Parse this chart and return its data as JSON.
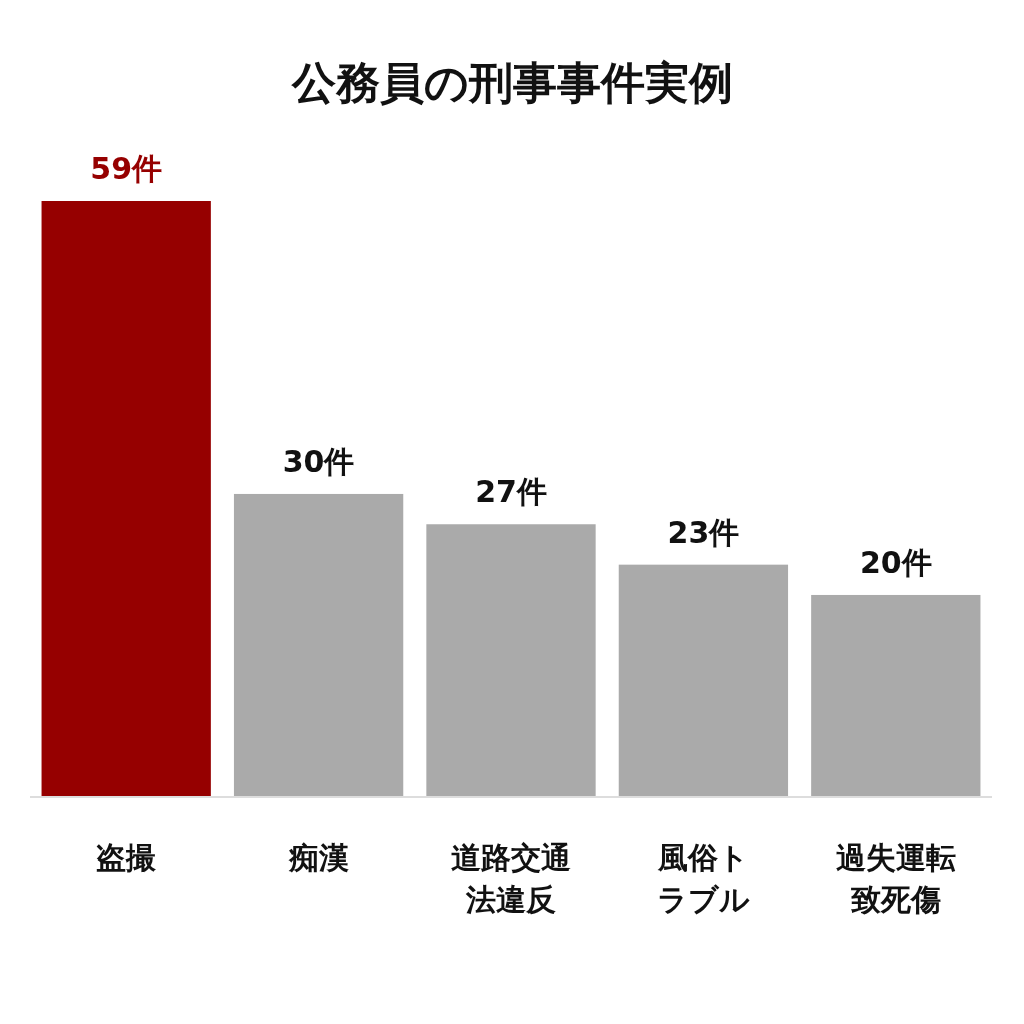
{
  "chart_data": {
    "type": "bar",
    "title": "公務員の刑事事件実例",
    "categories": [
      "盗撮",
      "痴漢",
      "道路交通法違反",
      "風俗トラブル",
      "過失運転致死傷"
    ],
    "values": [
      59,
      30,
      27,
      23,
      20
    ],
    "colors": [
      "#960000",
      "#aaaaaa",
      "#aaaaaa",
      "#aaaaaa",
      "#aaaaaa"
    ],
    "value_labels": [
      "59件",
      "30件",
      "27件",
      "23件",
      "20件"
    ]
  }
}
